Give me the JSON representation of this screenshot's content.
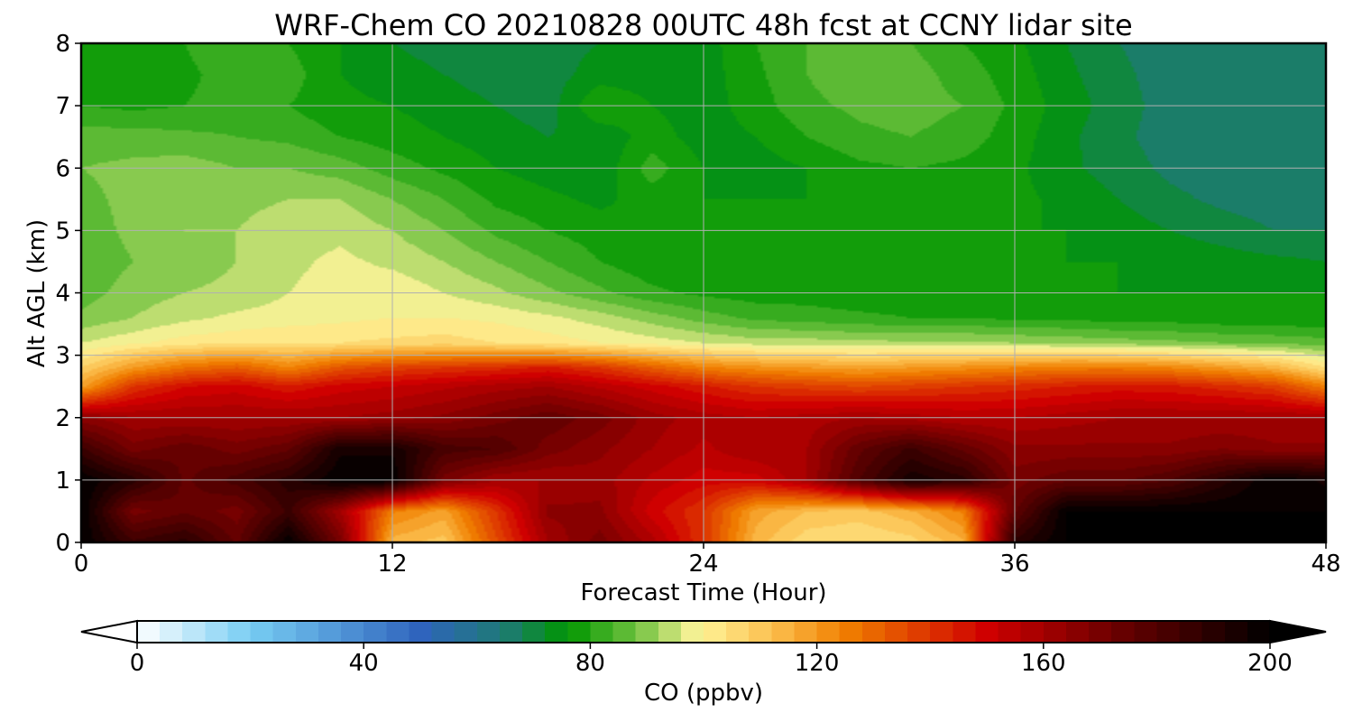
{
  "chart_data": {
    "type": "heatmap",
    "title": "WRF-Chem CO  20210828 00UTC 48h fcst at CCNY lidar site",
    "xlabel": "Forecast Time (Hour)",
    "ylabel": "Alt AGL (km)",
    "xlim": [
      0,
      48
    ],
    "ylim": [
      0,
      8
    ],
    "xticks": [
      0,
      12,
      24,
      36,
      48
    ],
    "yticks": [
      0,
      1,
      2,
      3,
      4,
      5,
      6,
      7,
      8
    ],
    "grid": true,
    "colorbar": {
      "label": "CO  (ppbv)",
      "range": [
        0,
        200
      ],
      "ticks": [
        0,
        40,
        80,
        120,
        160,
        200
      ],
      "extend": "both",
      "orientation": "horizontal",
      "stops": [
        {
          "value": 0,
          "color": "#ffffff"
        },
        {
          "value": 20,
          "color": "#77cdf3"
        },
        {
          "value": 50,
          "color": "#2f64bd"
        },
        {
          "value": 65,
          "color": "#1e7a73"
        },
        {
          "value": 76,
          "color": "#009600"
        },
        {
          "value": 88,
          "color": "#6ec13e"
        },
        {
          "value": 99,
          "color": "#fff59a"
        },
        {
          "value": 112,
          "color": "#fcc04f"
        },
        {
          "value": 125,
          "color": "#f07f00"
        },
        {
          "value": 150,
          "color": "#cf0000"
        },
        {
          "value": 172,
          "color": "#6e0000"
        },
        {
          "value": 200,
          "color": "#000000"
        }
      ]
    },
    "x": [
      0,
      2,
      4,
      6,
      8,
      10,
      12,
      14,
      16,
      18,
      20,
      22,
      24,
      26,
      28,
      30,
      32,
      34,
      36,
      38,
      40,
      42,
      44,
      46,
      48
    ],
    "y": [
      0,
      0.5,
      1,
      1.5,
      2,
      2.5,
      2.8,
      3.2,
      3.6,
      4,
      4.5,
      5,
      5.5,
      6,
      6.5,
      7,
      7.5,
      8
    ],
    "z": [
      [
        200,
        185,
        190,
        175,
        200,
        170,
        114,
        110,
        135,
        160,
        170,
        158,
        140,
        114,
        105,
        104,
        106,
        115,
        190,
        200,
        200,
        200,
        200,
        200,
        200
      ],
      [
        200,
        170,
        175,
        170,
        185,
        160,
        125,
        118,
        140,
        165,
        165,
        150,
        140,
        118,
        112,
        110,
        115,
        125,
        175,
        200,
        200,
        200,
        200,
        200,
        200
      ],
      [
        200,
        190,
        175,
        182,
        190,
        200,
        200,
        170,
        160,
        160,
        162,
        155,
        150,
        150,
        160,
        180,
        195,
        190,
        170,
        175,
        175,
        180,
        190,
        200,
        195
      ],
      [
        185,
        170,
        175,
        170,
        175,
        195,
        195,
        182,
        180,
        170,
        165,
        160,
        155,
        160,
        160,
        175,
        185,
        175,
        165,
        165,
        165,
        165,
        168,
        165,
        165
      ],
      [
        165,
        160,
        160,
        160,
        160,
        160,
        162,
        165,
        170,
        175,
        170,
        162,
        158,
        156,
        158,
        160,
        158,
        156,
        156,
        158,
        160,
        160,
        160,
        160,
        160
      ],
      [
        118,
        140,
        148,
        150,
        145,
        150,
        152,
        155,
        158,
        160,
        155,
        150,
        145,
        140,
        138,
        136,
        138,
        140,
        142,
        144,
        146,
        145,
        142,
        138,
        125
      ],
      [
        108,
        120,
        128,
        132,
        124,
        134,
        138,
        140,
        142,
        145,
        140,
        132,
        125,
        122,
        120,
        118,
        120,
        122,
        124,
        126,
        126,
        124,
        120,
        115,
        104
      ],
      [
        96,
        99,
        102,
        103,
        104,
        104,
        105,
        106,
        104,
        102,
        100,
        98,
        96,
        94,
        94,
        93,
        93,
        93,
        92,
        91,
        90,
        89,
        88,
        87,
        86
      ],
      [
        89,
        92,
        95,
        97,
        98,
        99,
        100,
        100,
        99,
        97,
        94,
        90,
        86,
        83,
        82,
        81,
        80,
        80,
        79,
        79,
        78,
        78,
        77,
        77,
        76
      ],
      [
        86,
        90,
        92,
        93,
        96,
        98,
        99,
        96,
        93,
        89,
        85,
        81,
        79,
        78,
        78,
        77,
        77,
        76,
        76,
        76,
        76,
        76,
        76,
        76,
        76
      ],
      [
        85,
        88,
        90,
        92,
        95,
        97,
        95,
        92,
        88,
        84,
        80,
        77,
        76,
        76,
        76,
        77,
        77,
        76,
        76,
        76,
        76,
        75,
        74,
        73,
        72
      ],
      [
        86,
        89,
        92,
        92,
        94,
        95,
        92,
        88,
        83,
        80,
        78,
        76,
        80,
        78,
        76,
        76,
        77,
        77,
        76,
        76,
        74,
        72,
        70,
        68,
        68
      ],
      [
        87,
        89,
        92,
        91,
        92,
        92,
        88,
        84,
        79,
        77,
        75,
        78,
        76,
        76,
        76,
        77,
        78,
        78,
        77,
        75,
        72,
        69,
        67,
        66,
        66
      ],
      [
        88,
        89,
        90,
        88,
        88,
        86,
        82,
        79,
        76,
        74,
        73,
        82,
        76,
        74,
        76,
        79,
        80,
        79,
        77,
        73,
        70,
        67,
        66,
        66,
        66
      ],
      [
        86,
        86,
        85,
        84,
        83,
        80,
        78,
        76,
        74,
        72,
        73,
        78,
        74,
        76,
        80,
        83,
        84,
        82,
        78,
        73,
        69,
        66,
        66,
        66,
        66
      ],
      [
        80,
        79,
        80,
        82,
        80,
        77,
        76,
        74,
        72,
        70,
        80,
        76,
        74,
        78,
        83,
        85,
        86,
        84,
        79,
        74,
        70,
        66,
        66,
        66,
        66
      ],
      [
        78,
        78,
        79,
        82,
        82,
        76,
        74,
        72,
        70,
        70,
        74,
        74,
        74,
        79,
        84,
        87,
        86,
        82,
        78,
        73,
        69,
        66,
        66,
        66,
        66
      ],
      [
        78,
        78,
        80,
        84,
        80,
        76,
        72,
        70,
        69,
        70,
        72,
        73,
        74,
        80,
        84,
        86,
        84,
        80,
        77,
        72,
        68,
        66,
        66,
        66,
        66
      ]
    ]
  }
}
